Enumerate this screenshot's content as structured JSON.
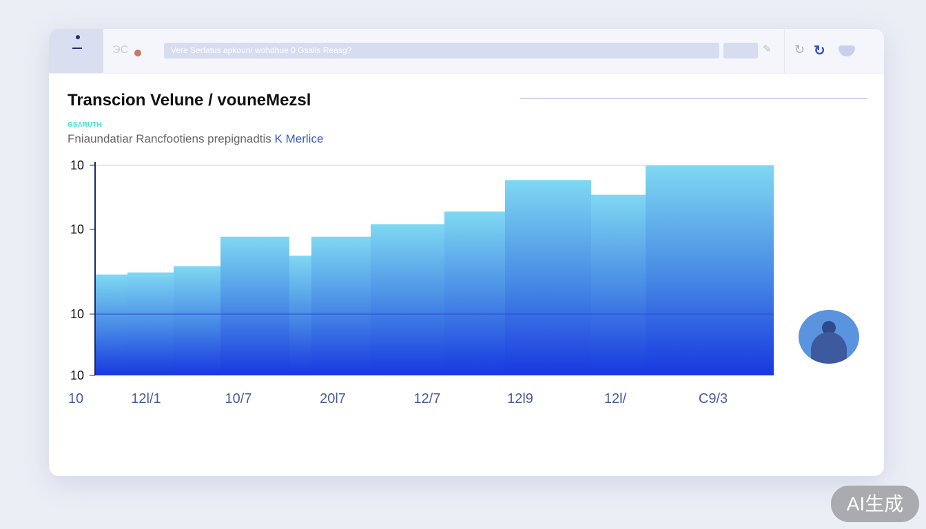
{
  "header": {
    "menu_icon": "menu-icon",
    "brand": "ЭС",
    "search_text": "Vere Serfatus   apkoun/ wohdhue  0  Gsails Reasg?",
    "icons": [
      "refresh-icon",
      "sync-icon",
      "shield-icon"
    ]
  },
  "main": {
    "title": "Transcion Velune / vouneMezsl",
    "tag": "GSARUTH",
    "subtitle": "Fniaundatiar Rancfootiens prepignadtis",
    "subtitle_link": "K Merlice"
  },
  "chart_data": {
    "type": "bar",
    "title": "",
    "xlabel": "",
    "ylabel": "",
    "y_tick_labels": [
      "10",
      "10",
      "10",
      "10"
    ],
    "x_tick_labels": [
      "10",
      "12l/1",
      "10/7",
      "20l7",
      "12/7",
      "12l9",
      "12l/",
      "C9/3"
    ],
    "values": [
      48,
      49,
      52,
      66,
      57,
      66,
      72,
      78,
      93,
      86,
      100
    ],
    "ylim": [
      0,
      100
    ],
    "grid": true,
    "colors": {
      "top": "#7fd8f2",
      "bottom": "#1838e0"
    }
  },
  "watermark": "AI生成"
}
